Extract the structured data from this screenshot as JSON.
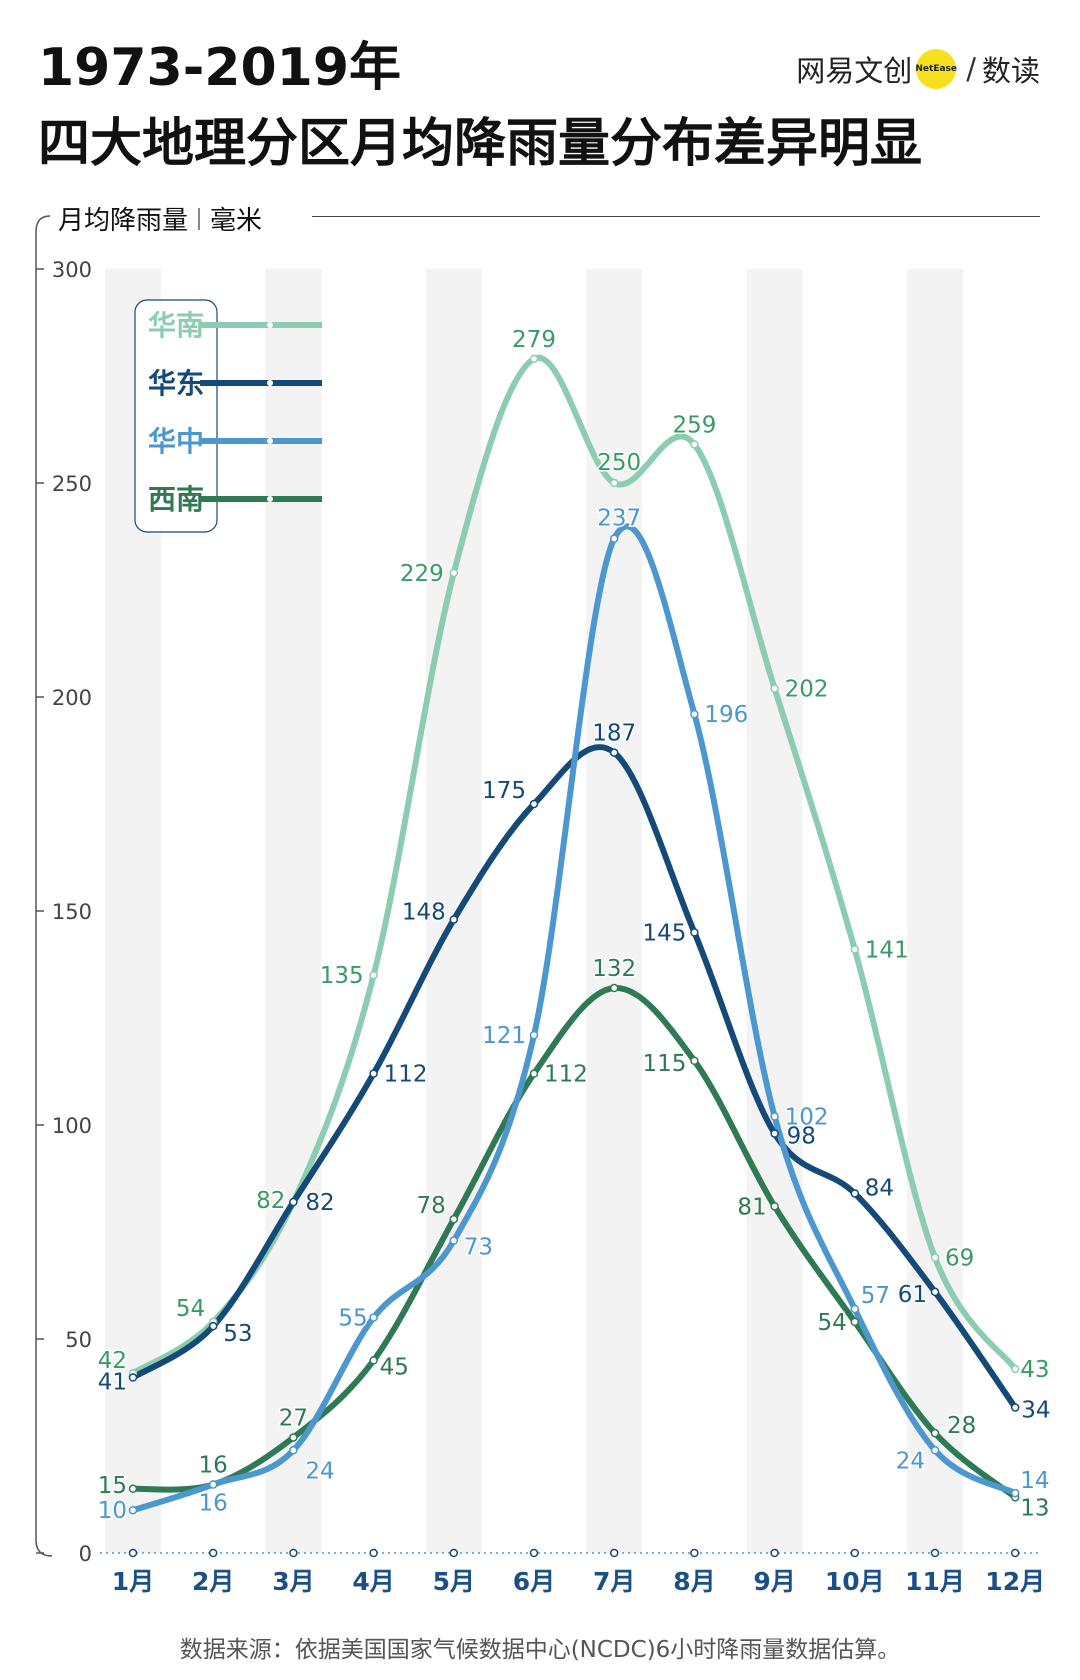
{
  "header": {
    "title_line1": "1973-2019年",
    "title_line2": "四大地理分区月均降雨量分布差异明显"
  },
  "brand": {
    "name": "网易文创",
    "badge": "NetEase",
    "slash": "/",
    "sub": "数读"
  },
  "unit_label": {
    "name": "月均降雨量",
    "unit": "毫米"
  },
  "footer": {
    "source": "数据来源：依据美国国家气候数据中心(NCDC)6小时降雨量数据估算。"
  },
  "chart_data": {
    "type": "line",
    "title": "1973-2019年四大地理分区月均降雨量分布差异明显",
    "ylabel": "月均降雨量 毫米",
    "xlabel": "",
    "ylim": [
      0,
      300
    ],
    "yticks": [
      0,
      50,
      100,
      150,
      200,
      250,
      300
    ],
    "grid": "alternating vertical bands",
    "legend_position": "top-left",
    "categories": [
      "1月",
      "2月",
      "3月",
      "4月",
      "5月",
      "6月",
      "7月",
      "8月",
      "9月",
      "10月",
      "11月",
      "12月"
    ],
    "series": [
      {
        "name": "华南",
        "color": "#8ccdb1",
        "label_color": "#3a9a66",
        "values": [
          42,
          54,
          82,
          135,
          229,
          279,
          250,
          259,
          202,
          141,
          69,
          43
        ]
      },
      {
        "name": "华东",
        "color": "#154a78",
        "label_color": "#154a78",
        "values": [
          41,
          53,
          82,
          112,
          148,
          175,
          187,
          145,
          98,
          84,
          61,
          34
        ]
      },
      {
        "name": "华中",
        "color": "#4d97cf",
        "label_color": "#4d97cf",
        "values": [
          10,
          16,
          24,
          55,
          73,
          121,
          237,
          196,
          102,
          57,
          24,
          14
        ]
      },
      {
        "name": "西南",
        "color": "#2f7a54",
        "label_color": "#2f7a54",
        "values": [
          15,
          16,
          27,
          45,
          78,
          112,
          132,
          115,
          81,
          54,
          28,
          13
        ]
      }
    ]
  }
}
